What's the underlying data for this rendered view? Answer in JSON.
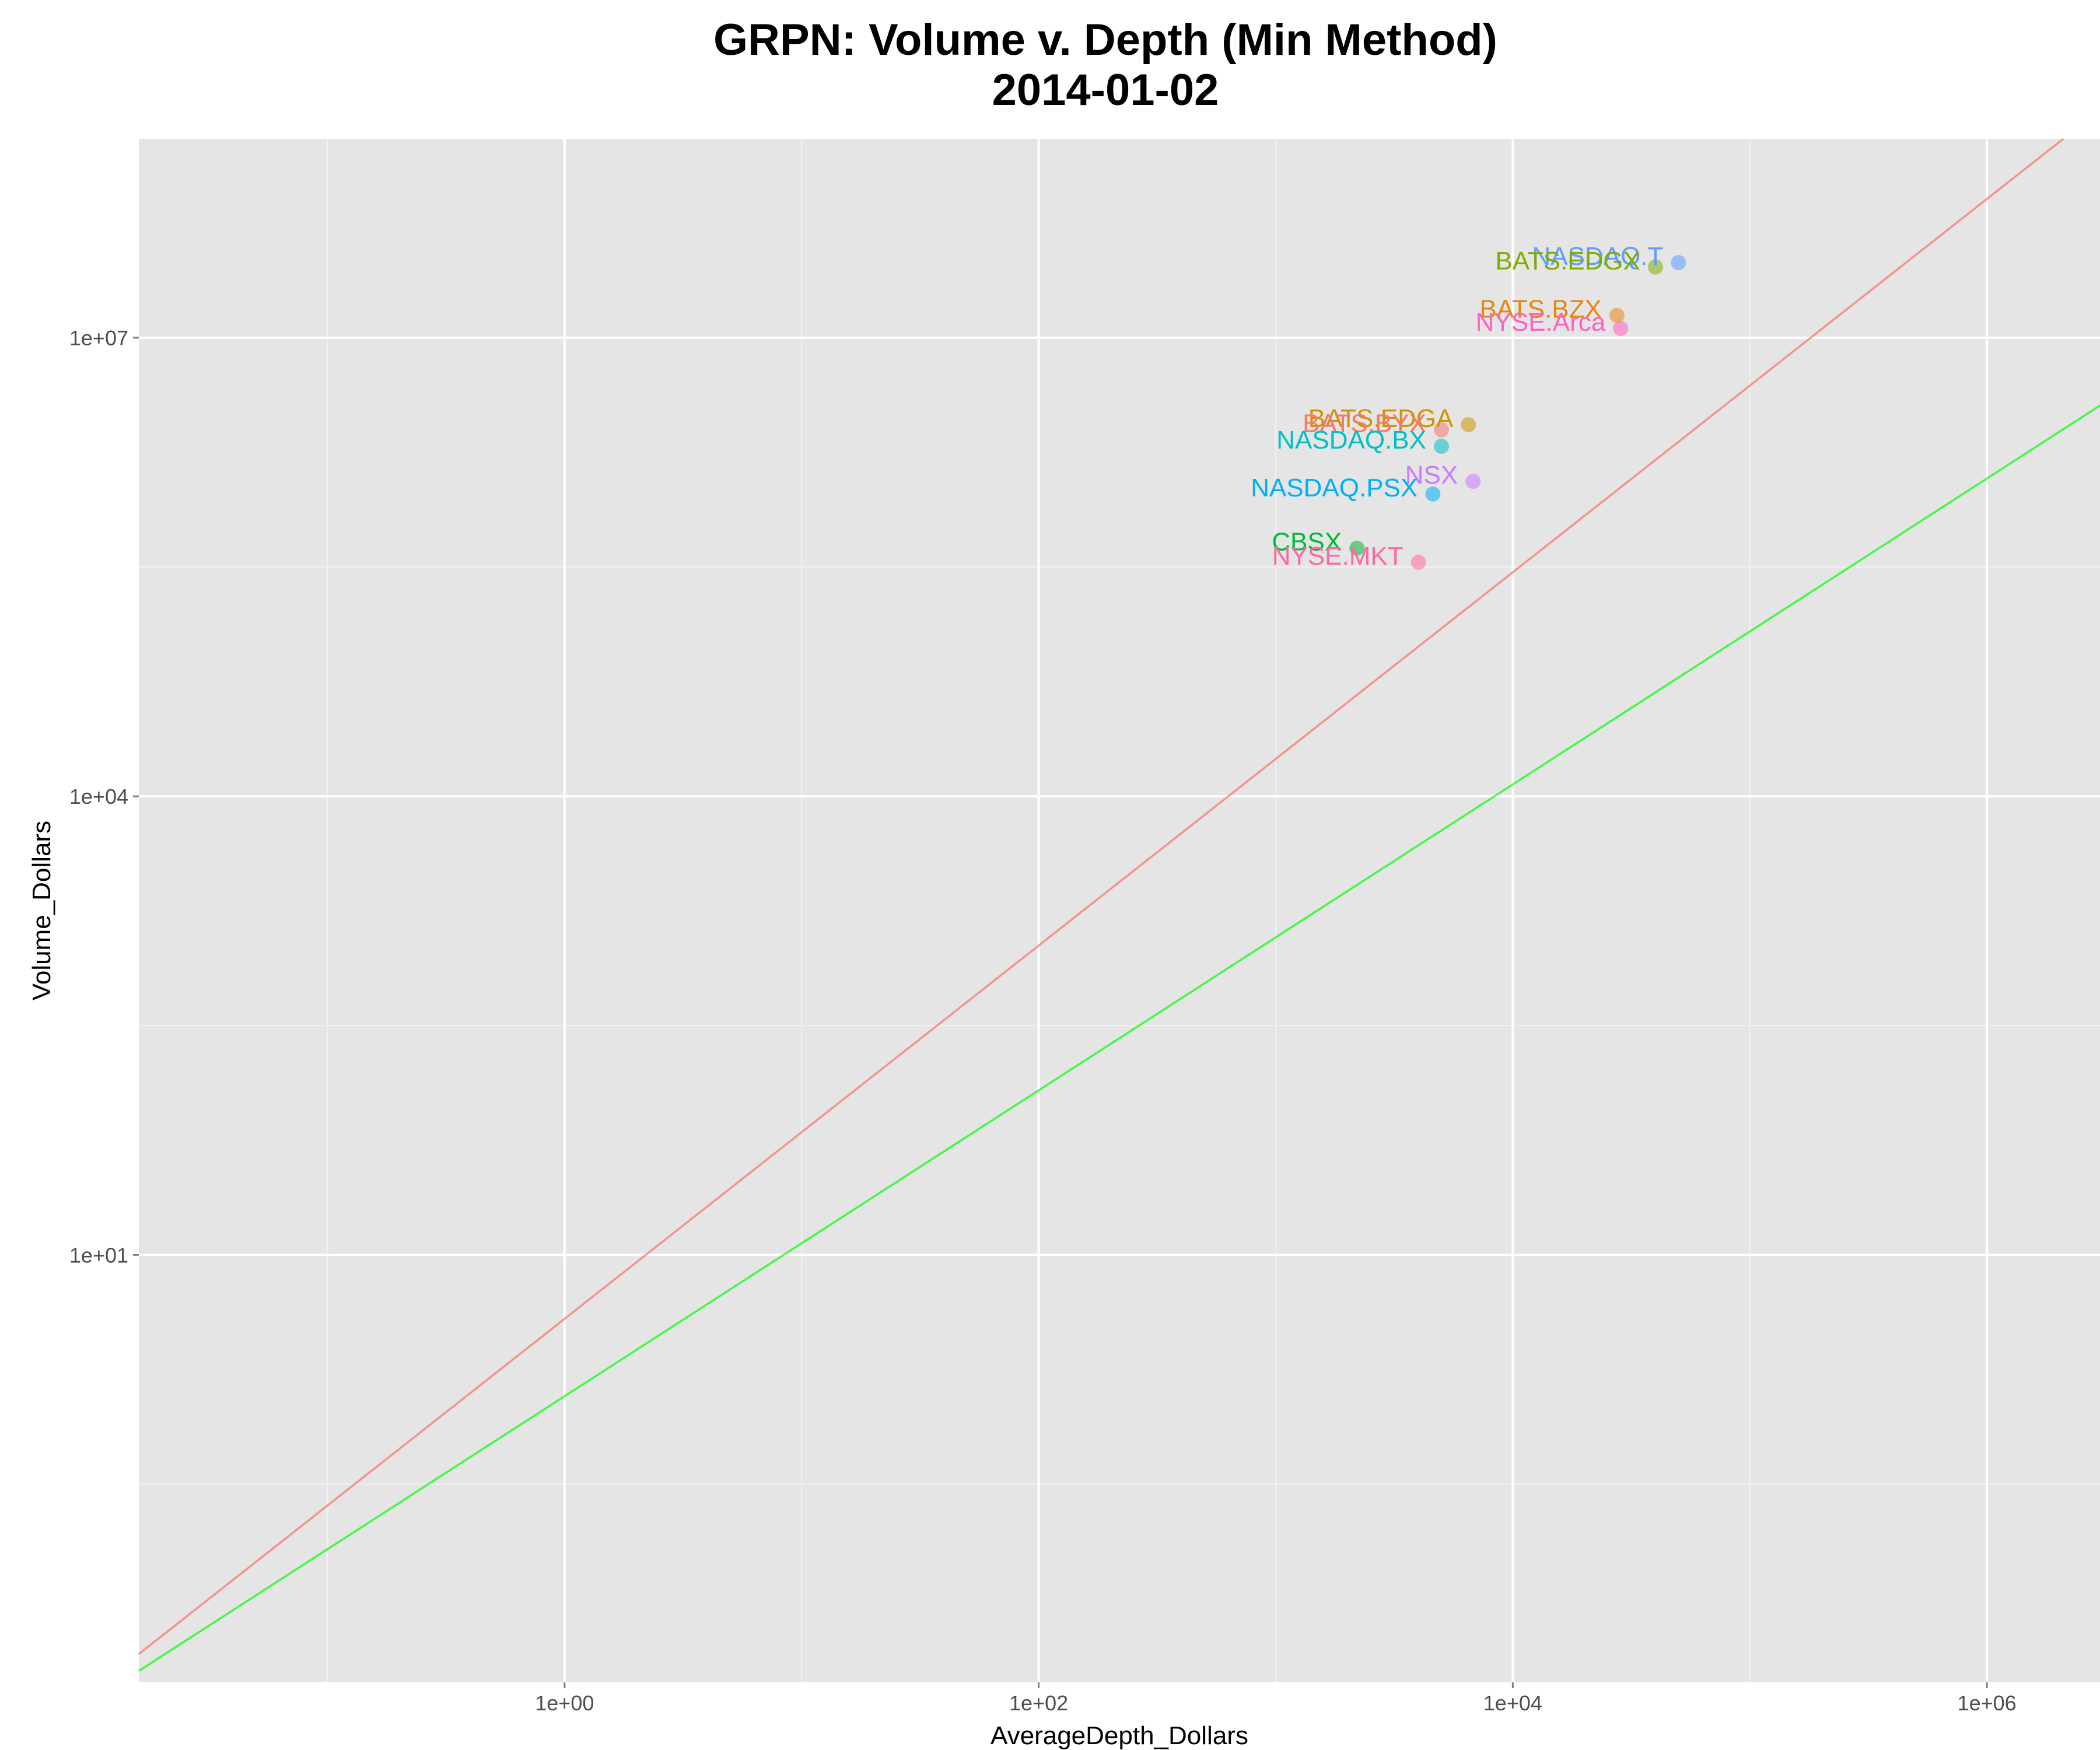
{
  "chart_data": {
    "type": "scatter",
    "title": "GRPN: Volume v. Depth (Min Method)",
    "subtitle": "2014-01-02",
    "xlabel": "AverageDepth_Dollars",
    "ylabel": "Volume_Dollars",
    "x_scale": "log10",
    "y_scale": "log10",
    "xlim": [
      0.016,
      3000000
    ],
    "ylim": [
      0.016,
      200000000
    ],
    "x_ticks": [
      {
        "value": 1,
        "label": "1e+00"
      },
      {
        "value": 100,
        "label": "1e+02"
      },
      {
        "value": 10000,
        "label": "1e+04"
      },
      {
        "value": 1000000,
        "label": "1e+06"
      }
    ],
    "y_ticks": [
      {
        "value": 10,
        "label": "1e+01"
      },
      {
        "value": 10000,
        "label": "1e+04"
      },
      {
        "value": 10000000,
        "label": "1e+07"
      }
    ],
    "grid": true,
    "legend": "none",
    "background_color": "#E5E5E5",
    "grid_color": "#FFFFFF",
    "points": [
      {
        "label": "NASDAQ.T",
        "x": 50000,
        "y": 31000000,
        "color": "#619CFF"
      },
      {
        "label": "BATS.EDGX",
        "x": 40000,
        "y": 29000000,
        "color": "#7CAE00"
      },
      {
        "label": "BATS.BZX",
        "x": 27500,
        "y": 14000000,
        "color": "#E68613"
      },
      {
        "label": "NYSE.Arca",
        "x": 28500,
        "y": 11500000,
        "color": "#FF61C3"
      },
      {
        "label": "BATS.EDGA",
        "x": 6500,
        "y": 2700000,
        "color": "#CD9600"
      },
      {
        "label": "BATS.BYX",
        "x": 5000,
        "y": 2500000,
        "color": "#F8766D"
      },
      {
        "label": "NASDAQ.BX",
        "x": 5000,
        "y": 1950000,
        "color": "#00BFC4"
      },
      {
        "label": "NSX",
        "x": 6800,
        "y": 1150000,
        "color": "#C77CFF"
      },
      {
        "label": "NASDAQ.PSX",
        "x": 4600,
        "y": 950000,
        "color": "#00B0F6"
      },
      {
        "label": "CBSX",
        "x": 2200,
        "y": 420000,
        "color": "#00BA38"
      },
      {
        "label": "NYSE.MKT",
        "x": 4000,
        "y": 340000,
        "color": "#FF67A4"
      }
    ],
    "lines": [
      {
        "color": "#F8766D",
        "points": [
          {
            "x": 0.016,
            "y": 0.0245
          },
          {
            "x": 2100000,
            "y": 200000000
          }
        ]
      },
      {
        "color": "#00FF00",
        "points": [
          {
            "x": 0.016,
            "y": 0.019
          },
          {
            "x": 3000000,
            "y": 3600000
          }
        ]
      }
    ]
  }
}
